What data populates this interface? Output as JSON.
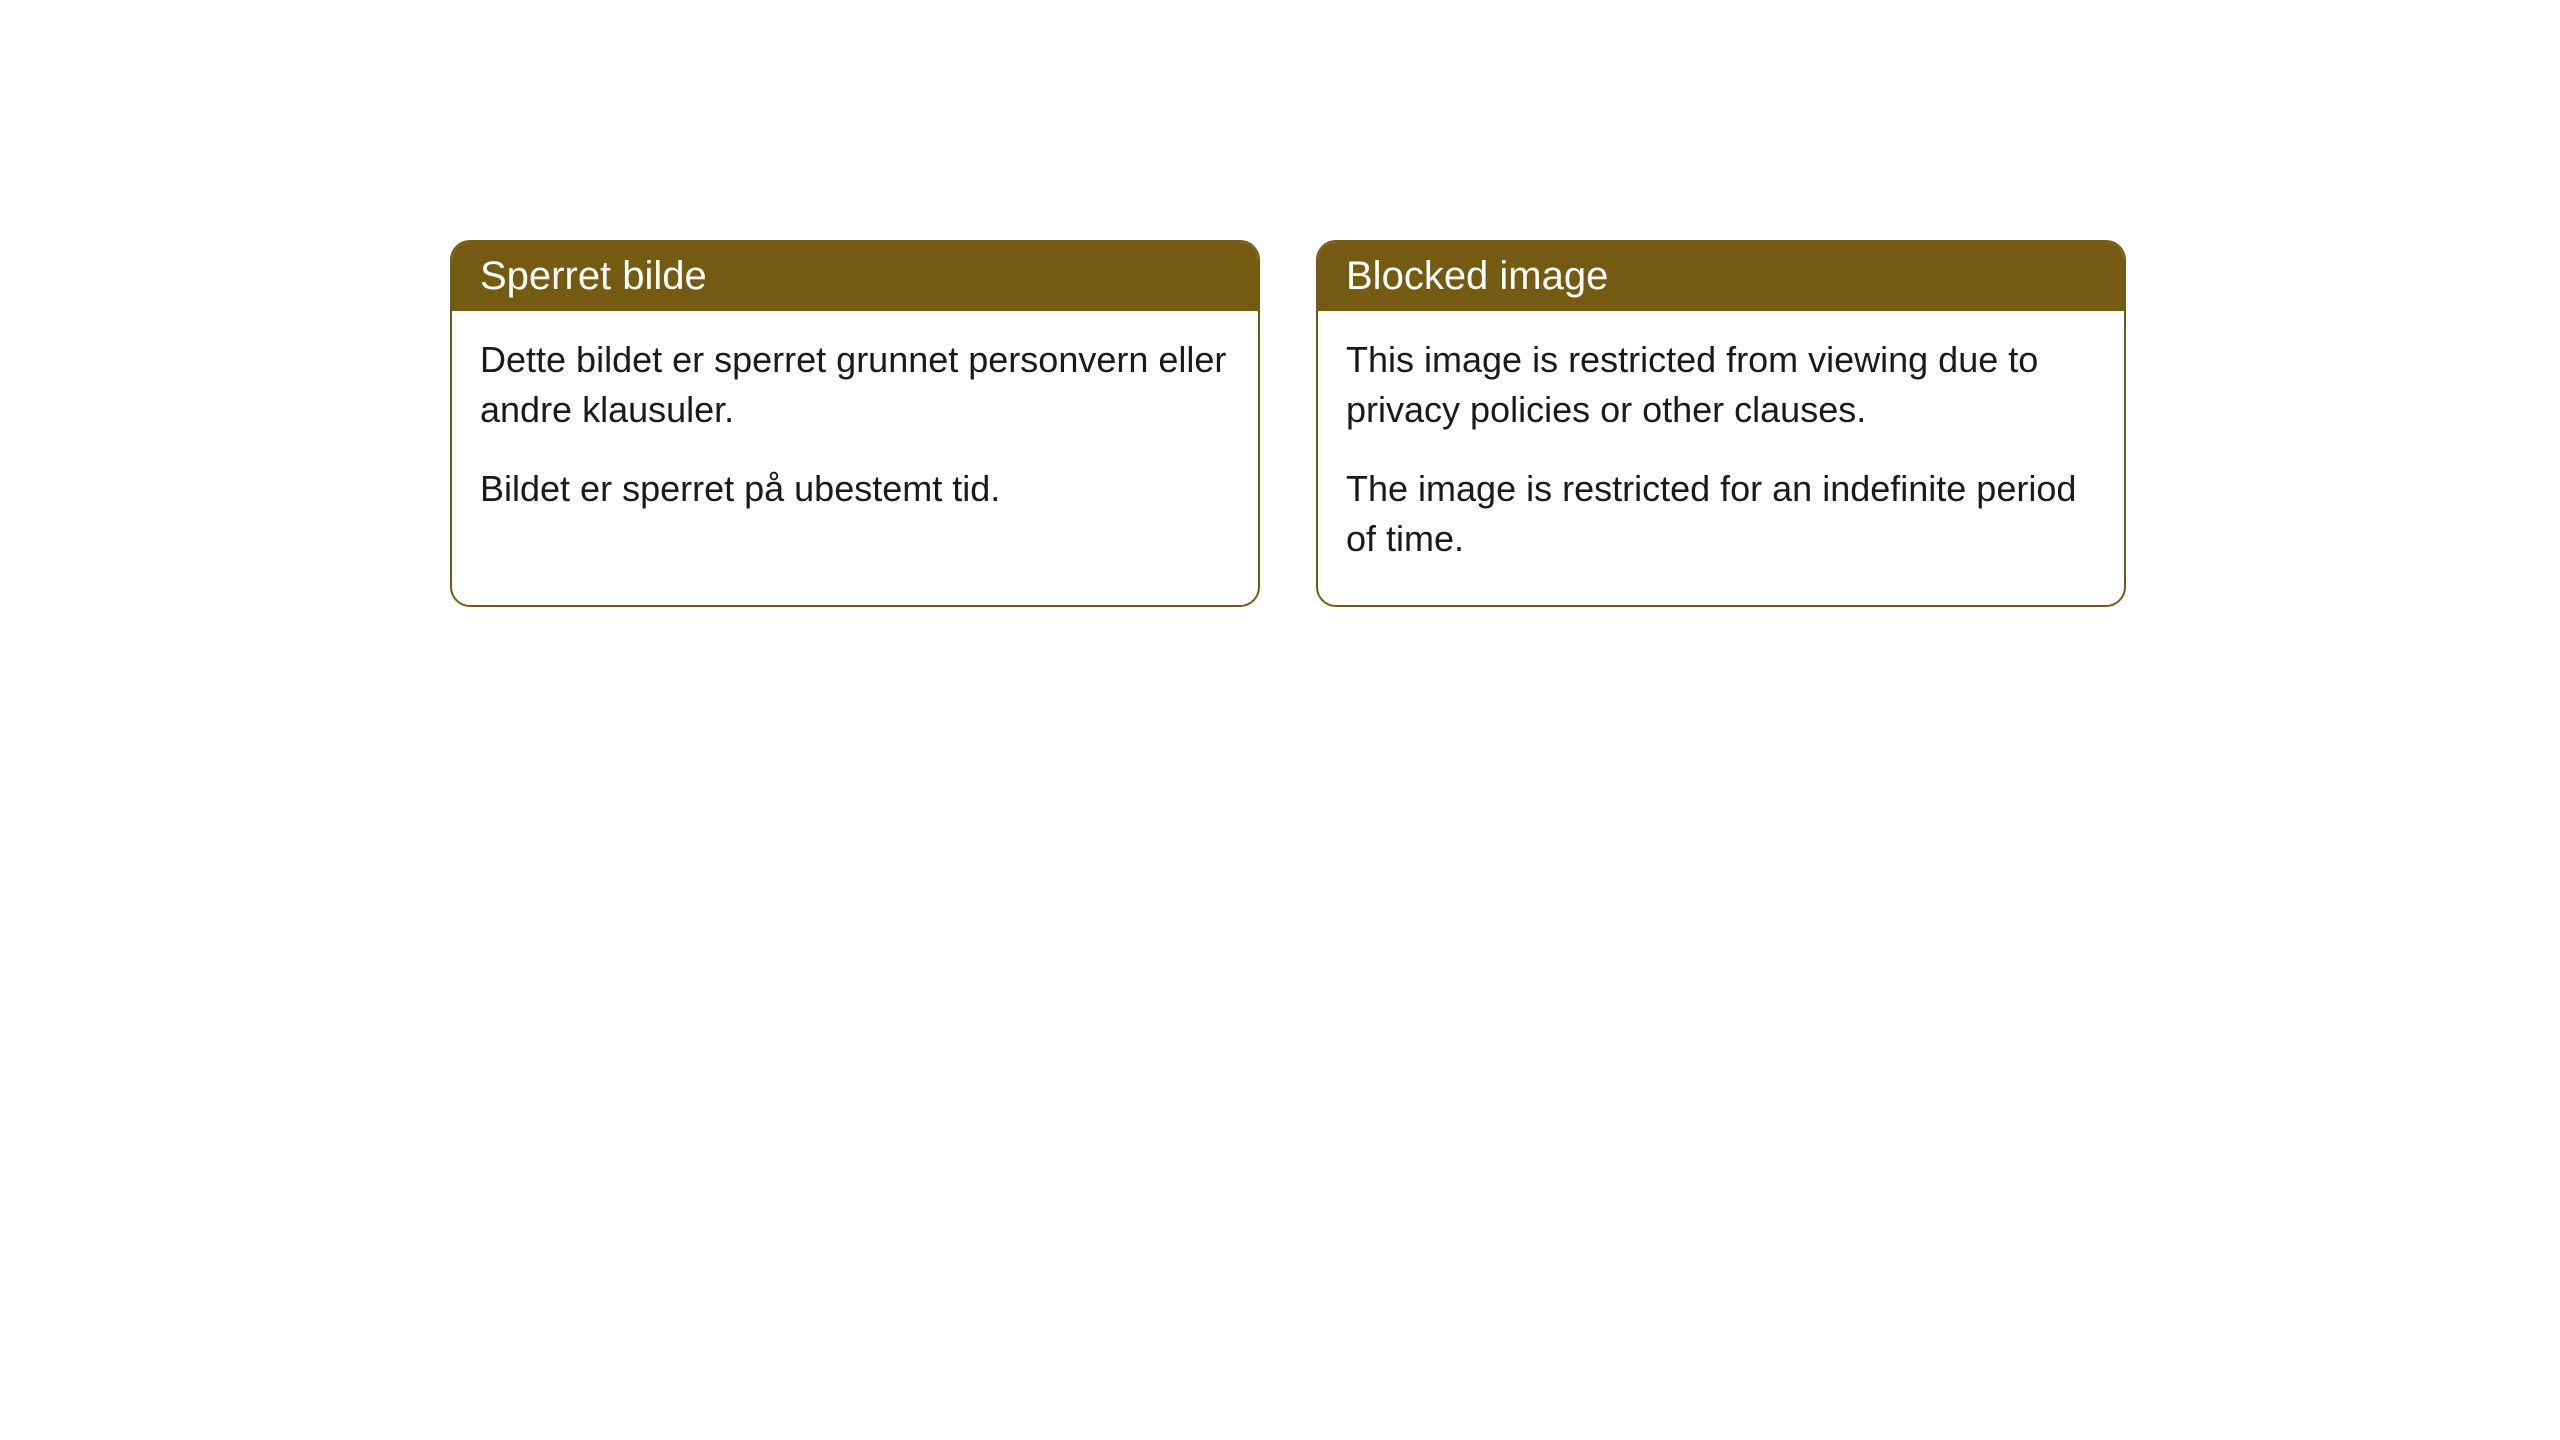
{
  "cards": {
    "norwegian": {
      "title": "Sperret bilde",
      "paragraph1": "Dette bildet er sperret grunnet personvern eller andre klausuler.",
      "paragraph2": "Bildet er sperret på ubestemt tid."
    },
    "english": {
      "title": "Blocked image",
      "paragraph1": "This image is restricted from viewing due to privacy policies or other clauses.",
      "paragraph2": "The image is restricted for an indefinite period of time."
    }
  },
  "styling": {
    "header_bg_color": "#755b11",
    "header_text_color": "#ffffff",
    "border_color": "#755b11",
    "body_text_color": "#1a1a1a",
    "background_color": "#ffffff",
    "border_radius": 20,
    "title_fontsize": 40,
    "body_fontsize": 36
  }
}
